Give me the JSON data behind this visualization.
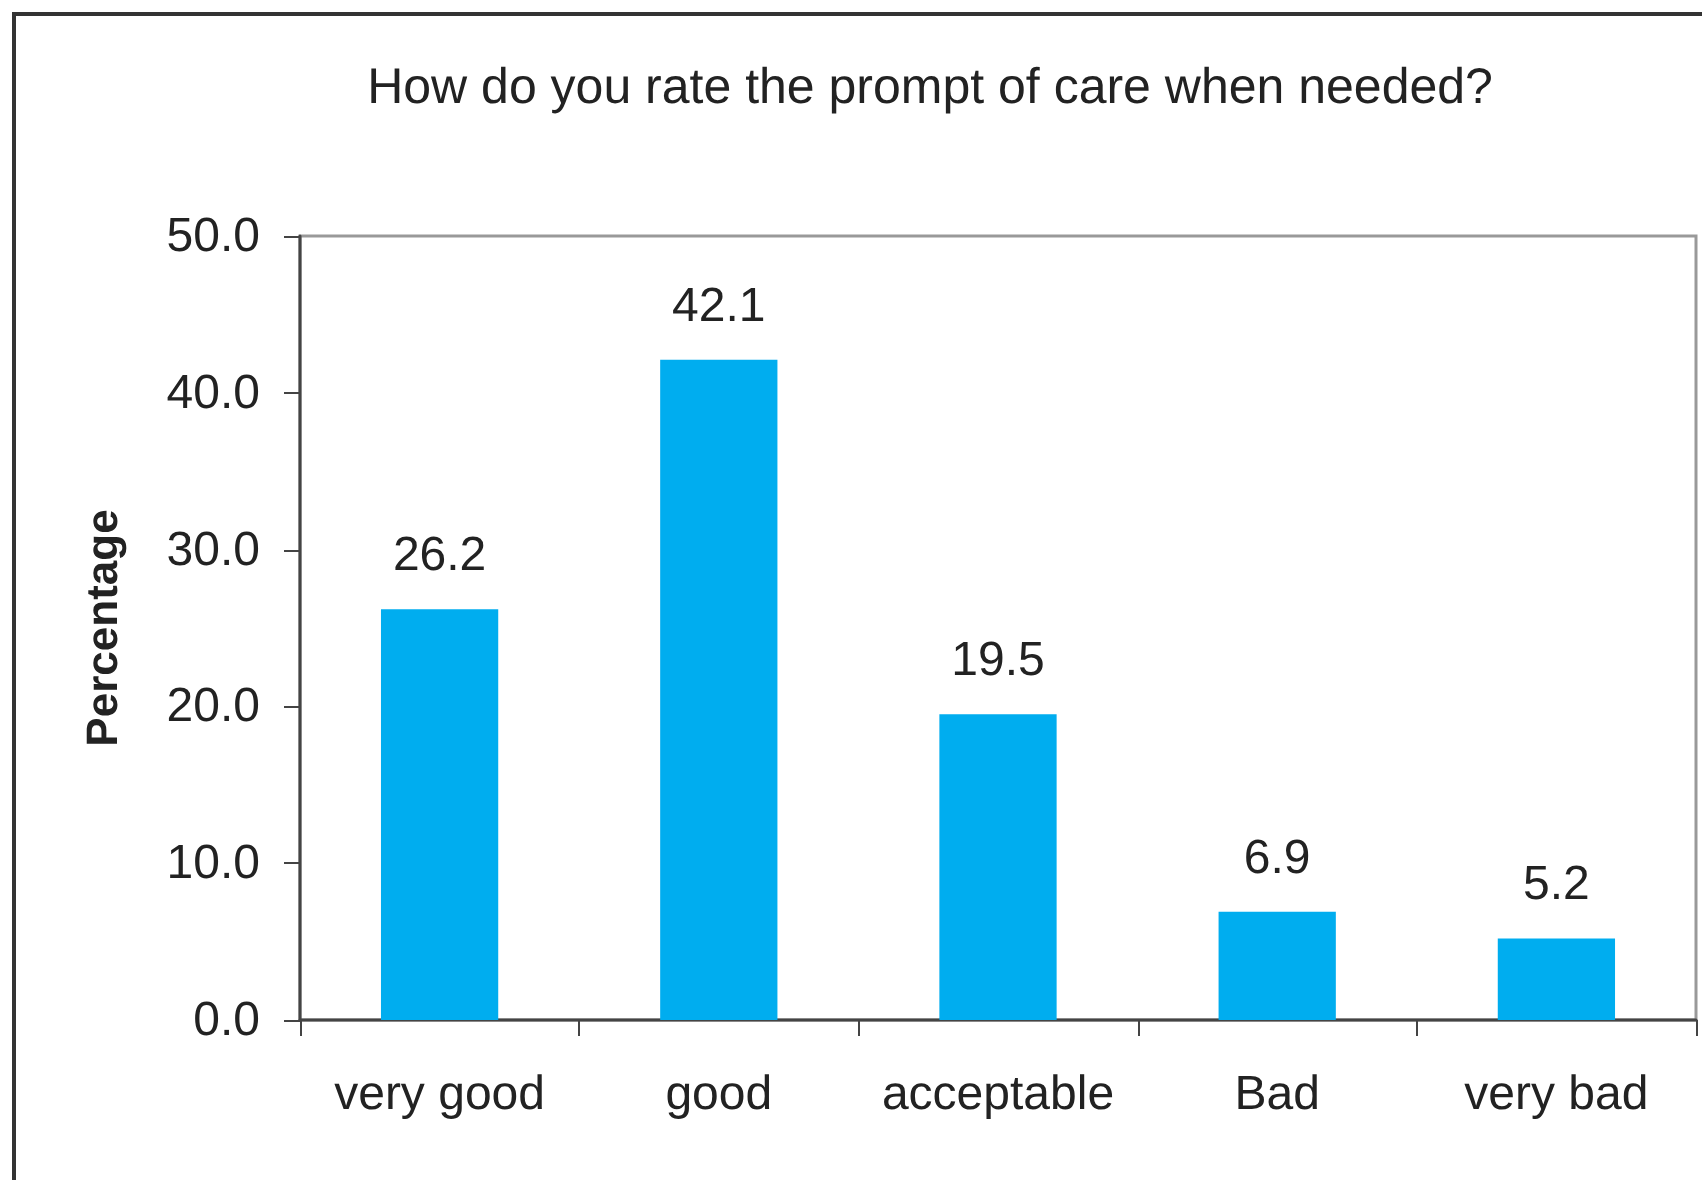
{
  "chart_data": {
    "type": "bar",
    "title": "How do you rate the prompt of care when needed?",
    "ylabel": "Percentage",
    "categories": [
      "very good",
      "good",
      "acceptable",
      "Bad",
      "very bad"
    ],
    "values": [
      26.2,
      42.1,
      19.5,
      6.9,
      5.2
    ],
    "color": "#00adef",
    "ylim": [
      0,
      50
    ],
    "yticks": [
      {
        "value": 0,
        "label": "0.0"
      },
      {
        "value": 10,
        "label": "10.0"
      },
      {
        "value": 20,
        "label": "20.0"
      },
      {
        "value": 30,
        "label": "30.0"
      },
      {
        "value": 40,
        "label": "40.0"
      },
      {
        "value": 50,
        "label": "50.0"
      }
    ],
    "data_labels": true
  }
}
